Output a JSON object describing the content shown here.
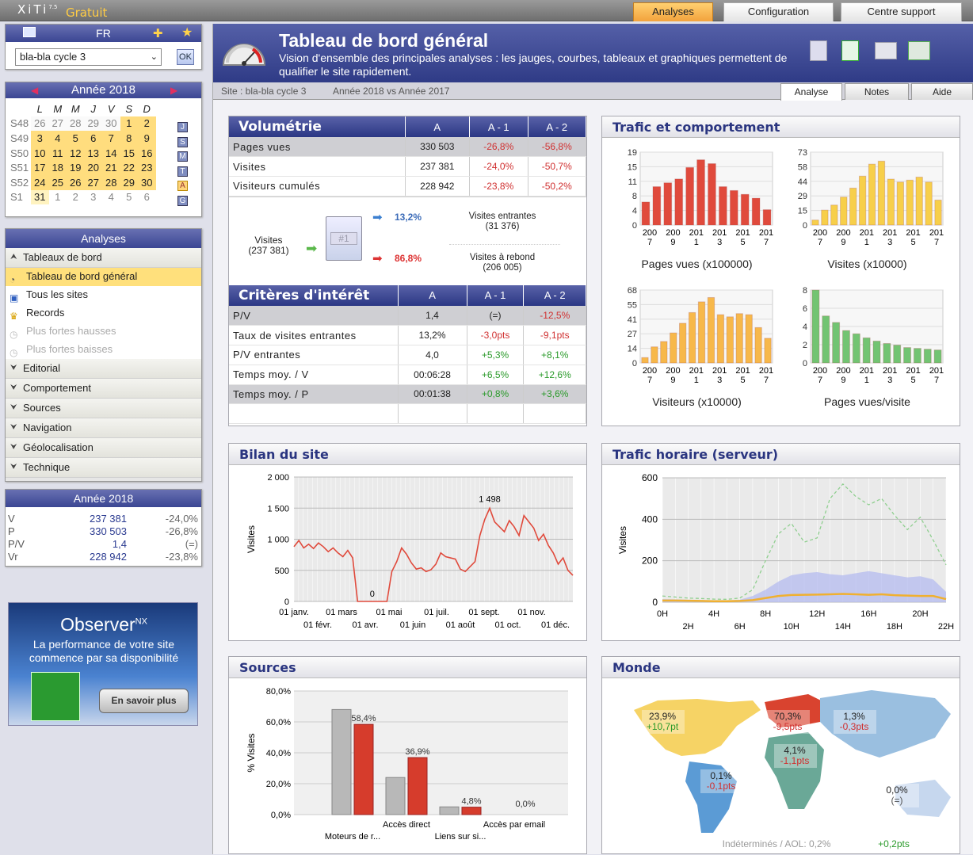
{
  "topbar": {
    "brand": "XiTi",
    "version": "7.5",
    "edition": "Gratuit",
    "tabs": [
      "Analyses",
      "Configuration",
      "Centre support"
    ]
  },
  "lang": {
    "code": "FR",
    "site": "bla-bla cycle 3",
    "ok": "OK"
  },
  "calendar": {
    "title": "Année 2018",
    "days": [
      "L",
      "M",
      "M",
      "J",
      "V",
      "S",
      "D"
    ],
    "rows": [
      {
        "week": "S48",
        "days": [
          "26",
          "27",
          "28",
          "29",
          "30",
          "1",
          "2"
        ],
        "badge": "J"
      },
      {
        "week": "S49",
        "days": [
          "3",
          "4",
          "5",
          "6",
          "7",
          "8",
          "9"
        ],
        "badge": "S"
      },
      {
        "week": "S50",
        "days": [
          "10",
          "11",
          "12",
          "13",
          "14",
          "15",
          "16"
        ],
        "badge": "M"
      },
      {
        "week": "S51",
        "days": [
          "17",
          "18",
          "19",
          "20",
          "21",
          "22",
          "23"
        ],
        "badge": "T"
      },
      {
        "week": "S52",
        "days": [
          "24",
          "25",
          "26",
          "27",
          "28",
          "29",
          "30"
        ],
        "badge": "A"
      },
      {
        "week": "S1",
        "days": [
          "31",
          "1",
          "2",
          "3",
          "4",
          "5",
          "6"
        ],
        "badge": "G"
      }
    ]
  },
  "menu": {
    "title": "Analyses",
    "section": "Tableaux de bord",
    "subitems": [
      {
        "label": "Tableau de bord général",
        "state": "selected"
      },
      {
        "label": "Tous les sites",
        "state": "normal"
      },
      {
        "label": "Records",
        "state": "normal"
      },
      {
        "label": "Plus fortes hausses",
        "state": "disabled"
      },
      {
        "label": "Plus fortes baisses",
        "state": "disabled"
      }
    ],
    "groups": [
      "Editorial",
      "Comportement",
      "Sources",
      "Navigation",
      "Géolocalisation",
      "Technique"
    ]
  },
  "year_summary": {
    "title": "Année 2018",
    "rows": [
      {
        "k": "V",
        "v": "237 381",
        "d": "-24,0%"
      },
      {
        "k": "P",
        "v": "330 503",
        "d": "-26,8%"
      },
      {
        "k": "P/V",
        "v": "1,4",
        "d": "(=)"
      },
      {
        "k": "Vr",
        "v": "228 942",
        "d": "-23,8%"
      }
    ]
  },
  "ad": {
    "brand": "Observer",
    "sup": "NX",
    "line1": "La performance de votre site",
    "line2": "commence par sa disponibilité",
    "cta": "En savoir plus"
  },
  "page": {
    "title": "Tableau de bord général",
    "subtitle": "Vision d'ensemble des principales analyses : les jauges, courbes, tableaux et graphiques permettent de qualifier le site rapidement.",
    "site": "Site : bla-bla cycle 3",
    "period": "Année 2018 vs Année 2017",
    "tabs": [
      "Analyse",
      "Notes",
      "Aide"
    ]
  },
  "volumetrie": {
    "title": "Volumétrie",
    "cols": [
      "A",
      "A - 1",
      "A - 2"
    ],
    "rows": [
      {
        "label": "Pages vues",
        "a": "330 503",
        "a1": "-26,8%",
        "a2": "-56,8%"
      },
      {
        "label": "Visites",
        "a": "237 381",
        "a1": "-24,0%",
        "a2": "-50,7%"
      },
      {
        "label": "Visiteurs cumulés",
        "a": "228 942",
        "a1": "-23,8%",
        "a2": "-50,2%"
      }
    ],
    "flow": {
      "visits_label": "Visites",
      "visits_value": "(237 381)",
      "entrantes_pct": "13,2%",
      "entrantes_label": "Visites entrantes",
      "entrantes_value": "(31 376)",
      "rebond_pct": "86,8%",
      "rebond_label": "Visites à rebond",
      "rebond_value": "(206 005)",
      "doc": "#1"
    }
  },
  "criteres": {
    "title": "Critères d'intérêt",
    "cols": [
      "A",
      "A - 1",
      "A - 2"
    ],
    "rows": [
      {
        "label": "P/V",
        "a": "1,4",
        "a1": "(=)",
        "a2": "-12,5%",
        "c1": "",
        "c2": "neg"
      },
      {
        "label": "Taux de visites entrantes",
        "a": "13,2%",
        "a1": "-3,0pts",
        "a2": "-9,1pts",
        "c1": "neg",
        "c2": "neg"
      },
      {
        "label": "P/V entrantes",
        "a": "4,0",
        "a1": "+5,3%",
        "a2": "+8,1%",
        "c1": "pos",
        "c2": "pos"
      },
      {
        "label": "Temps moy. / V",
        "a": "00:06:28",
        "a1": "+6,5%",
        "a2": "+12,6%",
        "c1": "pos",
        "c2": "pos"
      },
      {
        "label": "Temps moy. / P",
        "a": "00:01:38",
        "a1": "+0,8%",
        "a2": "+3,6%",
        "c1": "pos",
        "c2": "pos"
      }
    ]
  },
  "panels": {
    "trafic": "Trafic et comportement",
    "bilan": "Bilan du site",
    "horaire": "Trafic horaire (serveur)",
    "sources": "Sources",
    "monde": "Monde"
  },
  "chart_data": [
    {
      "type": "bar",
      "title": "Pages vues (x100000)",
      "color": "#e04a3c",
      "yticks": [
        "19",
        "15",
        "11",
        "8",
        "4",
        "0"
      ],
      "ymax": 19,
      "xlabels": [
        [
          "200",
          "7"
        ],
        [
          "200",
          "9"
        ],
        [
          "201",
          "1"
        ],
        [
          "201",
          "3"
        ],
        [
          "201",
          "5"
        ],
        [
          "201",
          "7"
        ]
      ],
      "values": [
        6,
        10,
        11,
        12,
        15,
        17,
        16,
        10,
        9,
        8,
        7,
        4
      ]
    },
    {
      "type": "bar",
      "title": "Visites (x10000)",
      "color": "#f7cf4a",
      "yticks": [
        "73",
        "58",
        "44",
        "29",
        "15",
        "0"
      ],
      "ymax": 73,
      "xlabels": [
        [
          "200",
          "7"
        ],
        [
          "200",
          "9"
        ],
        [
          "201",
          "1"
        ],
        [
          "201",
          "3"
        ],
        [
          "201",
          "5"
        ],
        [
          "201",
          "7"
        ]
      ],
      "values": [
        5,
        15,
        20,
        28,
        37,
        49,
        61,
        64,
        46,
        43,
        45,
        48,
        43,
        25
      ]
    },
    {
      "type": "bar",
      "title": "Visiteurs (x10000)",
      "color": "#f7b84a",
      "yticks": [
        "68",
        "55",
        "41",
        "27",
        "14",
        "0"
      ],
      "ymax": 68,
      "xlabels": [
        [
          "200",
          "7"
        ],
        [
          "200",
          "9"
        ],
        [
          "201",
          "1"
        ],
        [
          "201",
          "3"
        ],
        [
          "201",
          "5"
        ],
        [
          "201",
          "7"
        ]
      ],
      "values": [
        5,
        15,
        20,
        28,
        37,
        47,
        57,
        61,
        45,
        43,
        46,
        45,
        33,
        23
      ]
    },
    {
      "type": "bar",
      "title": "Pages vues/visite",
      "color": "#72c472",
      "yticks": [
        "8",
        "6",
        "4",
        "2",
        "0"
      ],
      "ymax": 9,
      "xlabels": [
        [
          "200",
          "7"
        ],
        [
          "200",
          "9"
        ],
        [
          "201",
          "1"
        ],
        [
          "201",
          "3"
        ],
        [
          "201",
          "5"
        ],
        [
          "201",
          "7"
        ]
      ],
      "values": [
        9,
        5.8,
        5,
        4,
        3.6,
        3.1,
        2.7,
        2.4,
        2.2,
        1.9,
        1.8,
        1.7,
        1.6
      ]
    },
    {
      "type": "line",
      "title": "Bilan du site",
      "ylabel": "Visites",
      "yticks": [
        "2 000",
        "1 500",
        "1 000",
        "500",
        "0"
      ],
      "ymax": 2000,
      "xtop": [
        "01 janv.",
        "01 mars",
        "01 mai",
        "01 juil.",
        "01 sept.",
        "01 nov."
      ],
      "xbot": [
        "01 févr.",
        "01 avr.",
        "01 juin",
        "01 août",
        "01 oct.",
        "01 déc."
      ],
      "max_label": "1 498",
      "min_label": "0",
      "series": [
        880,
        980,
        860,
        920,
        850,
        940,
        880,
        800,
        860,
        780,
        720,
        820,
        700,
        0,
        0,
        0,
        0,
        0,
        0,
        0,
        480,
        640,
        860,
        760,
        620,
        520,
        540,
        480,
        510,
        600,
        780,
        720,
        700,
        680,
        520,
        480,
        560,
        640,
        1060,
        1320,
        1498,
        1280,
        1200,
        1120,
        1300,
        1200,
        1060,
        1380,
        1280,
        1180,
        980,
        1080,
        900,
        780,
        600,
        700,
        500,
        420
      ]
    },
    {
      "type": "line",
      "title": "Trafic horaire (serveur)",
      "ylabel": "Visites",
      "yticks": [
        "600",
        "400",
        "200",
        "0"
      ],
      "ymax": 600,
      "xtop": [
        "0H",
        "4H",
        "8H",
        "12H",
        "16H",
        "20H"
      ],
      "xbot": [
        "2H",
        "6H",
        "10H",
        "14H",
        "18H",
        "22H"
      ],
      "series": [
        {
          "name": "",
          "values": [
            30,
            25,
            20,
            18,
            15,
            14,
            20,
            60,
            200,
            330,
            380,
            290,
            310,
            500,
            570,
            510,
            470,
            500,
            420,
            350,
            410,
            300,
            180
          ]
        },
        {
          "name": "",
          "values": [
            15,
            14,
            12,
            10,
            8,
            8,
            12,
            30,
            60,
            100,
            130,
            140,
            145,
            135,
            130,
            140,
            150,
            140,
            130,
            120,
            125,
            110,
            50
          ]
        },
        {
          "name": "",
          "values": [
            8,
            8,
            7,
            6,
            5,
            5,
            6,
            10,
            20,
            30,
            35,
            36,
            37,
            38,
            40,
            38,
            36,
            38,
            34,
            32,
            30,
            30,
            15
          ]
        }
      ]
    },
    {
      "type": "bar",
      "title": "Sources",
      "ylabel": "% Visites",
      "yticks": [
        "80,0%",
        "60,0%",
        "40,0%",
        "20,0%",
        "0,0%"
      ],
      "ymax": 80,
      "categories": [
        "Moteurs de r...",
        "Accès direct",
        "Liens sur si...",
        "Accès par email"
      ],
      "gray": [
        68,
        24,
        5,
        0
      ],
      "red": [
        58.4,
        36.9,
        4.8,
        0
      ],
      "labels": [
        "58,4%",
        "36,9%",
        "4,8%",
        "0,0%"
      ]
    }
  ],
  "monde": {
    "regions": [
      {
        "pct": "23,9%",
        "delta": "+10,7pt",
        "cls": "pos"
      },
      {
        "pct": "70,3%",
        "delta": "-9,5pts",
        "cls": "neg"
      },
      {
        "pct": "1,3%",
        "delta": "-0,3pts",
        "cls": "neg"
      },
      {
        "pct": "4,1%",
        "delta": "-1,1pts",
        "cls": "neg"
      },
      {
        "pct": "0,1%",
        "delta": "-0,1pts",
        "cls": "neg"
      },
      {
        "pct": "0,0%",
        "delta": "(=)",
        "cls": ""
      }
    ],
    "footer": "Indéterminés / AOL: 0,2%",
    "footer_delta": "+0,2pts"
  }
}
